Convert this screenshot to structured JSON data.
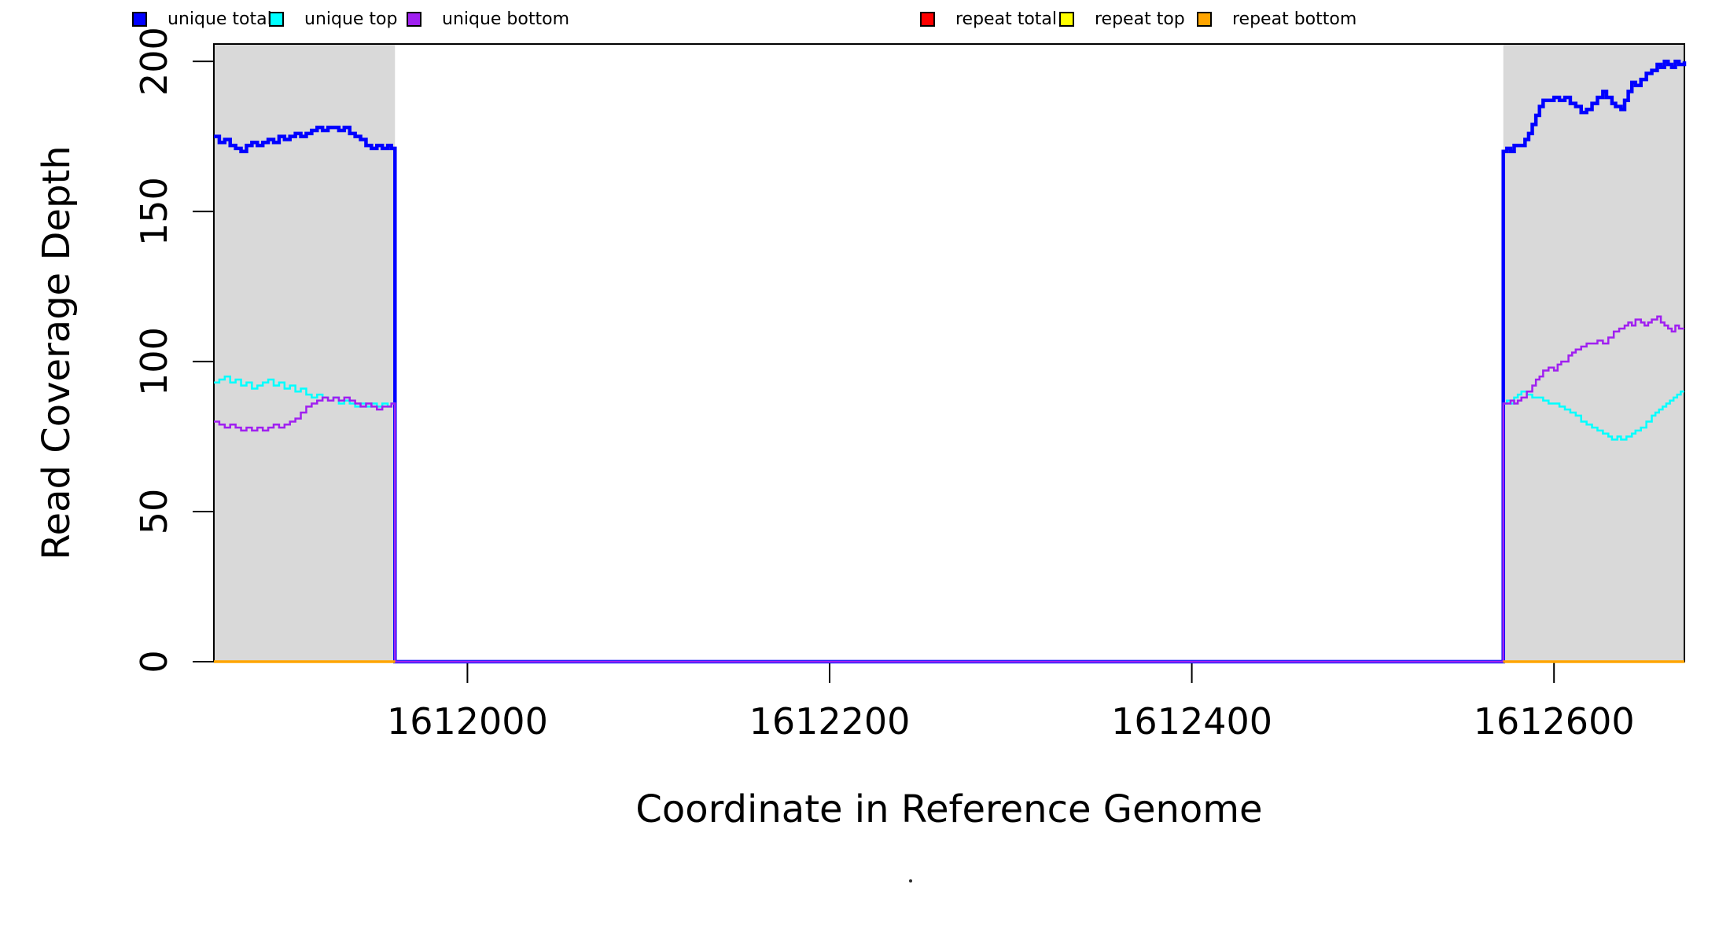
{
  "chart_data": {
    "type": "line",
    "title": "",
    "grid": false,
    "legend_position": "bottom",
    "x_axis": {
      "label": "Coordinate in Reference Genome",
      "range": [
        1611860,
        1612672
      ],
      "ticks": [
        1612000,
        1612200,
        1612400,
        1612600
      ]
    },
    "y_axis": {
      "label": "Read Coverage Depth",
      "range": [
        0,
        205.8
      ],
      "ticks": [
        0,
        50,
        100,
        150,
        200
      ]
    },
    "shaded_regions": {
      "color": "#D9D9D9",
      "intervals": [
        [
          1611860,
          1611960
        ],
        [
          1612572,
          1612672
        ]
      ]
    },
    "series": [
      {
        "name": "unique total",
        "color": "#0000FF",
        "width": 4.5,
        "segments": [
          [
            [
              1611860,
              175
            ],
            [
              1611863,
              173
            ],
            [
              1611866,
              174
            ],
            [
              1611869,
              172
            ],
            [
              1611872,
              171
            ],
            [
              1611875,
              170
            ],
            [
              1611878,
              172
            ],
            [
              1611881,
              173
            ],
            [
              1611884,
              172
            ],
            [
              1611887,
              173
            ],
            [
              1611890,
              174
            ],
            [
              1611893,
              173
            ],
            [
              1611896,
              175
            ],
            [
              1611899,
              174
            ],
            [
              1611902,
              175
            ],
            [
              1611905,
              176
            ],
            [
              1611908,
              175
            ],
            [
              1611911,
              176
            ],
            [
              1611914,
              177
            ],
            [
              1611917,
              178
            ],
            [
              1611920,
              177
            ],
            [
              1611923,
              178
            ],
            [
              1611926,
              178
            ],
            [
              1611929,
              177
            ],
            [
              1611932,
              178
            ],
            [
              1611935,
              176
            ],
            [
              1611938,
              175
            ],
            [
              1611941,
              174
            ],
            [
              1611944,
              172
            ],
            [
              1611947,
              171
            ],
            [
              1611950,
              172
            ],
            [
              1611953,
              171
            ],
            [
              1611956,
              172
            ],
            [
              1611958,
              171
            ],
            [
              1611960,
              170
            ],
            [
              1611960,
              0
            ],
            [
              1612572,
              0
            ],
            [
              1612572,
              170
            ],
            [
              1612574,
              171
            ],
            [
              1612576,
              170
            ],
            [
              1612578,
              172
            ],
            [
              1612581,
              172
            ],
            [
              1612584,
              174
            ],
            [
              1612586,
              176
            ],
            [
              1612588,
              179
            ],
            [
              1612590,
              182
            ],
            [
              1612592,
              185
            ],
            [
              1612594,
              187
            ],
            [
              1612597,
              187
            ],
            [
              1612600,
              188
            ],
            [
              1612603,
              187
            ],
            [
              1612606,
              188
            ],
            [
              1612609,
              186
            ],
            [
              1612612,
              185
            ],
            [
              1612615,
              183
            ],
            [
              1612618,
              184
            ],
            [
              1612621,
              186
            ],
            [
              1612624,
              188
            ],
            [
              1612627,
              190
            ],
            [
              1612629,
              188
            ],
            [
              1612632,
              186
            ],
            [
              1612634,
              185
            ],
            [
              1612637,
              184
            ],
            [
              1612639,
              187
            ],
            [
              1612641,
              190
            ],
            [
              1612643,
              193
            ],
            [
              1612645,
              192
            ],
            [
              1612648,
              194
            ],
            [
              1612651,
              196
            ],
            [
              1612654,
              197
            ],
            [
              1612657,
              199
            ],
            [
              1612659,
              198
            ],
            [
              1612661,
              200
            ],
            [
              1612663,
              199
            ],
            [
              1612665,
              198
            ],
            [
              1612667,
              200
            ],
            [
              1612669,
              199
            ],
            [
              1612672,
              200
            ]
          ]
        ]
      },
      {
        "name": "unique top",
        "color": "#00FFFF",
        "width": 2.5,
        "segments": [
          [
            [
              1611860,
              93
            ],
            [
              1611863,
              94
            ],
            [
              1611866,
              95
            ],
            [
              1611869,
              93
            ],
            [
              1611872,
              94
            ],
            [
              1611875,
              92
            ],
            [
              1611878,
              93
            ],
            [
              1611881,
              91
            ],
            [
              1611884,
              92
            ],
            [
              1611887,
              93
            ],
            [
              1611890,
              94
            ],
            [
              1611893,
              92
            ],
            [
              1611896,
              93
            ],
            [
              1611899,
              91
            ],
            [
              1611902,
              92
            ],
            [
              1611905,
              90
            ],
            [
              1611908,
              91
            ],
            [
              1611911,
              89
            ],
            [
              1611914,
              88
            ],
            [
              1611917,
              89
            ],
            [
              1611920,
              88
            ],
            [
              1611923,
              87
            ],
            [
              1611926,
              88
            ],
            [
              1611929,
              86
            ],
            [
              1611932,
              87
            ],
            [
              1611935,
              86
            ],
            [
              1611938,
              85
            ],
            [
              1611941,
              86
            ],
            [
              1611944,
              85
            ],
            [
              1611947,
              86
            ],
            [
              1611950,
              85
            ],
            [
              1611953,
              86
            ],
            [
              1611956,
              85
            ],
            [
              1611958,
              86
            ],
            [
              1611960,
              86
            ],
            [
              1611960,
              0
            ],
            [
              1612572,
              0
            ],
            [
              1612572,
              86
            ],
            [
              1612574,
              87
            ],
            [
              1612576,
              86
            ],
            [
              1612578,
              88
            ],
            [
              1612580,
              89
            ],
            [
              1612582,
              90
            ],
            [
              1612585,
              89
            ],
            [
              1612588,
              88
            ],
            [
              1612591,
              88
            ],
            [
              1612594,
              87
            ],
            [
              1612597,
              86
            ],
            [
              1612600,
              86
            ],
            [
              1612603,
              85
            ],
            [
              1612606,
              84
            ],
            [
              1612609,
              83
            ],
            [
              1612612,
              82
            ],
            [
              1612615,
              80
            ],
            [
              1612618,
              79
            ],
            [
              1612621,
              78
            ],
            [
              1612624,
              77
            ],
            [
              1612627,
              76
            ],
            [
              1612630,
              75
            ],
            [
              1612632,
              74
            ],
            [
              1612635,
              75
            ],
            [
              1612637,
              74
            ],
            [
              1612640,
              75
            ],
            [
              1612643,
              76
            ],
            [
              1612645,
              77
            ],
            [
              1612648,
              78
            ],
            [
              1612651,
              80
            ],
            [
              1612654,
              82
            ],
            [
              1612656,
              83
            ],
            [
              1612658,
              84
            ],
            [
              1612660,
              85
            ],
            [
              1612662,
              86
            ],
            [
              1612664,
              87
            ],
            [
              1612666,
              88
            ],
            [
              1612668,
              89
            ],
            [
              1612670,
              90
            ],
            [
              1612672,
              90
            ]
          ]
        ]
      },
      {
        "name": "unique bottom",
        "color": "#A020F0",
        "width": 2.5,
        "segments": [
          [
            [
              1611860,
              80
            ],
            [
              1611863,
              79
            ],
            [
              1611866,
              78
            ],
            [
              1611869,
              79
            ],
            [
              1611872,
              78
            ],
            [
              1611875,
              77
            ],
            [
              1611878,
              78
            ],
            [
              1611881,
              77
            ],
            [
              1611884,
              78
            ],
            [
              1611887,
              77
            ],
            [
              1611890,
              78
            ],
            [
              1611893,
              79
            ],
            [
              1611896,
              78
            ],
            [
              1611899,
              79
            ],
            [
              1611902,
              80
            ],
            [
              1611905,
              81
            ],
            [
              1611908,
              83
            ],
            [
              1611911,
              85
            ],
            [
              1611914,
              86
            ],
            [
              1611917,
              87
            ],
            [
              1611920,
              88
            ],
            [
              1611923,
              87
            ],
            [
              1611926,
              88
            ],
            [
              1611929,
              87
            ],
            [
              1611932,
              88
            ],
            [
              1611935,
              87
            ],
            [
              1611938,
              86
            ],
            [
              1611941,
              85
            ],
            [
              1611944,
              86
            ],
            [
              1611947,
              85
            ],
            [
              1611950,
              84
            ],
            [
              1611953,
              85
            ],
            [
              1611956,
              85
            ],
            [
              1611958,
              86
            ],
            [
              1611960,
              86
            ],
            [
              1611960,
              0
            ],
            [
              1612572,
              0
            ],
            [
              1612572,
              86
            ],
            [
              1612574,
              86
            ],
            [
              1612576,
              87
            ],
            [
              1612578,
              86
            ],
            [
              1612580,
              87
            ],
            [
              1612582,
              88
            ],
            [
              1612585,
              90
            ],
            [
              1612588,
              92
            ],
            [
              1612590,
              94
            ],
            [
              1612592,
              95
            ],
            [
              1612594,
              97
            ],
            [
              1612597,
              98
            ],
            [
              1612600,
              97
            ],
            [
              1612602,
              99
            ],
            [
              1612604,
              100
            ],
            [
              1612606,
              100
            ],
            [
              1612608,
              102
            ],
            [
              1612610,
              103
            ],
            [
              1612612,
              104
            ],
            [
              1612615,
              105
            ],
            [
              1612618,
              106
            ],
            [
              1612621,
              106
            ],
            [
              1612624,
              107
            ],
            [
              1612627,
              106
            ],
            [
              1612630,
              108
            ],
            [
              1612633,
              110
            ],
            [
              1612636,
              111
            ],
            [
              1612639,
              112
            ],
            [
              1612641,
              113
            ],
            [
              1612643,
              112
            ],
            [
              1612645,
              114
            ],
            [
              1612648,
              113
            ],
            [
              1612650,
              112
            ],
            [
              1612652,
              113
            ],
            [
              1612654,
              114
            ],
            [
              1612657,
              115
            ],
            [
              1612659,
              113
            ],
            [
              1612661,
              112
            ],
            [
              1612663,
              111
            ],
            [
              1612665,
              110
            ],
            [
              1612667,
              112
            ],
            [
              1612669,
              111
            ],
            [
              1612672,
              111
            ]
          ]
        ]
      },
      {
        "name": "repeat total",
        "color": "#FF0000",
        "width": 2.5,
        "segments": [
          [
            [
              1611860,
              0
            ],
            [
              1611960,
              0
            ]
          ],
          [
            [
              1612572,
              0
            ],
            [
              1612672,
              0
            ]
          ]
        ]
      },
      {
        "name": "repeat top",
        "color": "#FFFF00",
        "width": 2.5,
        "segments": [
          [
            [
              1611860,
              0
            ],
            [
              1611960,
              0
            ]
          ],
          [
            [
              1612572,
              0
            ],
            [
              1612672,
              0
            ]
          ]
        ]
      },
      {
        "name": "repeat bottom",
        "color": "#FFA500",
        "width": 3.5,
        "segments": [
          [
            [
              1611860,
              0
            ],
            [
              1611960,
              0
            ]
          ],
          [
            [
              1612572,
              0
            ],
            [
              1612672,
              0
            ]
          ]
        ]
      }
    ]
  }
}
